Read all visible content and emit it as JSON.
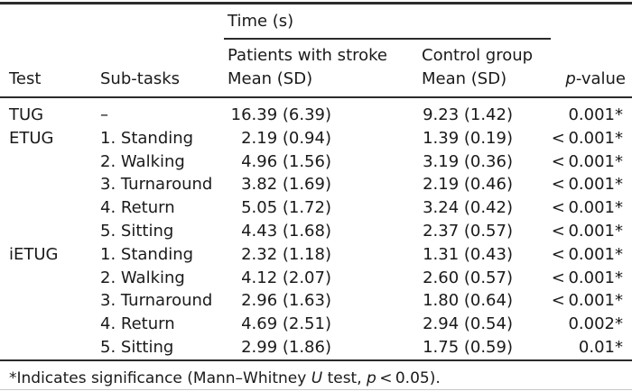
{
  "table": {
    "spanner_title": "Time (s)",
    "headers": {
      "test": "Test",
      "subtasks": "Sub-tasks",
      "group1_line1": "Patients with stroke",
      "group1_line2": "Mean (SD)",
      "group2_line1": "Control group",
      "group2_line2": "Mean (SD)",
      "pvalue_italic": "p",
      "pvalue_rest": "-value"
    },
    "rows": [
      {
        "test": "TUG",
        "subtask": "–",
        "stroke": "16.39 (6.39)",
        "control": "9.23 (1.42)",
        "p": "0.001*"
      },
      {
        "test": "ETUG",
        "subtask": "1. Standing",
        "stroke": "2.19 (0.94)",
        "control": "1.39 (0.19)",
        "p": "< 0.001*"
      },
      {
        "test": "",
        "subtask": "2. Walking",
        "stroke": "4.96 (1.56)",
        "control": "3.19 (0.36)",
        "p": "< 0.001*"
      },
      {
        "test": "",
        "subtask": "3. Turnaround",
        "stroke": "3.82 (1.69)",
        "control": "2.19 (0.46)",
        "p": "< 0.001*"
      },
      {
        "test": "",
        "subtask": "4. Return",
        "stroke": "5.05 (1.72)",
        "control": "3.24 (0.42)",
        "p": "< 0.001*"
      },
      {
        "test": "",
        "subtask": "5. Sitting",
        "stroke": "4.43 (1.68)",
        "control": "2.37 (0.57)",
        "p": "< 0.001*"
      },
      {
        "test": "iETUG",
        "subtask": "1. Standing",
        "stroke": "2.32 (1.18)",
        "control": "1.31 (0.43)",
        "p": "< 0.001*"
      },
      {
        "test": "",
        "subtask": "2. Walking",
        "stroke": "4.12 (2.07)",
        "control": "2.60 (0.57)",
        "p": "< 0.001*"
      },
      {
        "test": "",
        "subtask": "3. Turnaround",
        "stroke": "2.96 (1.63)",
        "control": "1.80 (0.64)",
        "p": "< 0.001*"
      },
      {
        "test": "",
        "subtask": "4. Return",
        "stroke": "4.69 (2.51)",
        "control": "2.94 (0.54)",
        "p": "0.002*"
      },
      {
        "test": "",
        "subtask": "5. Sitting",
        "stroke": "2.99 (1.86)",
        "control": "1.75 (0.59)",
        "p": "0.01*"
      }
    ],
    "footnote": {
      "part1": "*Indicates significance (Mann–Whitney ",
      "italic1": "U",
      "part2": " test, ",
      "italic2": "p",
      "part3": " < 0.05)."
    }
  },
  "colors": {
    "text": "#1a1a1a",
    "rule": "#2b2b2b",
    "background": "#ffffff"
  }
}
